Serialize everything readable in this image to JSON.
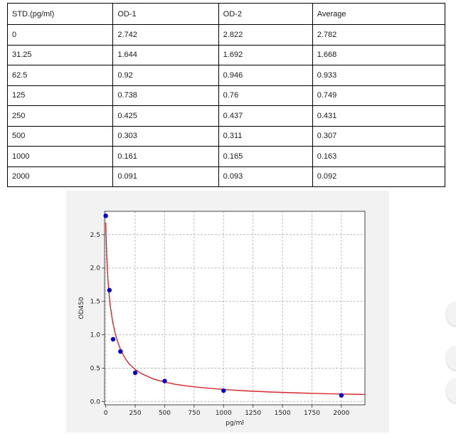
{
  "table": {
    "headers": [
      "STD.(pg/ml)",
      "OD-1",
      "OD-2",
      "Average"
    ],
    "rows": [
      [
        "0",
        "2.742",
        "2.822",
        "2.782"
      ],
      [
        "31.25",
        "1.644",
        "1.692",
        "1.668"
      ],
      [
        "62.5",
        "0.92",
        "0.946",
        "0.933"
      ],
      [
        "125",
        "0.738",
        "0.76",
        "0.749"
      ],
      [
        "250",
        "0.425",
        "0.437",
        "0.431"
      ],
      [
        "500",
        "0.303",
        "0.311",
        "0.307"
      ],
      [
        "1000",
        "0.161",
        "0.165",
        "0.163"
      ],
      [
        "2000",
        "0.091",
        "0.093",
        "0.092"
      ]
    ]
  },
  "chart_data": {
    "type": "scatter",
    "xlabel": "pg/ml",
    "ylabel": "OD450",
    "xlim": [
      -10,
      2200
    ],
    "ylim": [
      -0.05,
      2.85
    ],
    "xticks": [
      0,
      250,
      500,
      750,
      1000,
      1250,
      1500,
      1750,
      2000
    ],
    "yticks": [
      0.0,
      0.5,
      1.0,
      1.5,
      2.0,
      2.5
    ],
    "grid": true,
    "series": [
      {
        "kind": "points",
        "x": [
          0,
          31.25,
          62.5,
          125,
          250,
          500,
          1000,
          2000
        ],
        "y": [
          2.782,
          1.668,
          0.933,
          0.749,
          0.431,
          0.307,
          0.163,
          0.092
        ],
        "color": "#0000cc"
      },
      {
        "kind": "fitted-curve",
        "x": [
          0,
          5,
          10,
          15,
          20,
          30,
          40,
          60,
          80,
          100,
          125,
          150,
          175,
          200,
          250,
          300,
          400,
          500,
          600,
          700,
          800,
          1000,
          1200,
          1400,
          1600,
          1800,
          2000,
          2200
        ],
        "y": [
          2.68,
          2.36,
          2.12,
          1.94,
          1.79,
          1.57,
          1.41,
          1.18,
          1.02,
          0.9,
          0.78,
          0.69,
          0.62,
          0.56,
          0.48,
          0.42,
          0.34,
          0.29,
          0.255,
          0.23,
          0.21,
          0.18,
          0.158,
          0.142,
          0.13,
          0.12,
          0.112,
          0.105
        ],
        "color": "#d62728"
      }
    ]
  },
  "side_buttons": [
    {
      "icon": "circle-button"
    },
    {
      "icon": "circle-button"
    },
    {
      "icon": "circle-button"
    }
  ]
}
